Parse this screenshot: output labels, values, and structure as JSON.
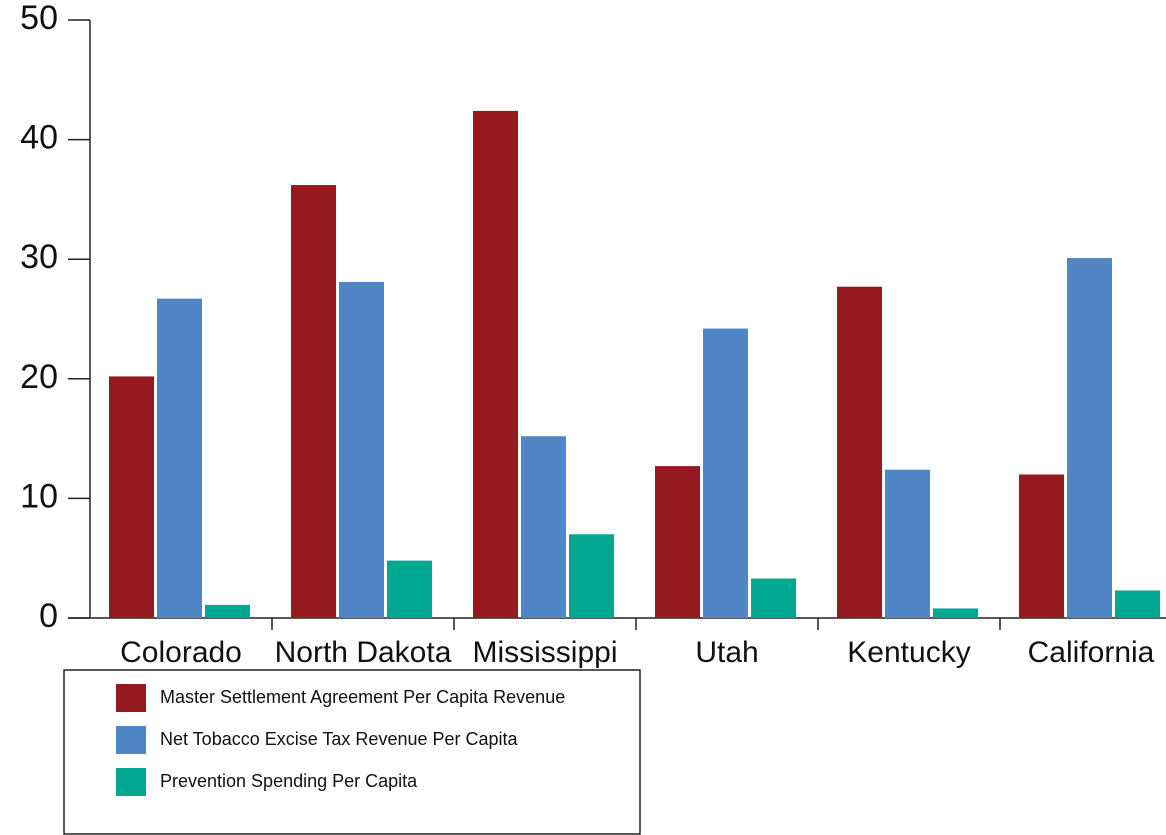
{
  "chart_data": {
    "type": "bar",
    "categories": [
      "Colorado",
      "North Dakota",
      "Mississippi",
      "Utah",
      "Kentucky",
      "California"
    ],
    "series": [
      {
        "name": "Master Settlement Agreement Per Capita Revenue",
        "color": "#941a1f",
        "values": [
          20.2,
          36.2,
          42.4,
          12.7,
          27.7,
          12.0
        ]
      },
      {
        "name": "Net Tobacco Excise Tax Revenue Per Capita",
        "color": "#5186c6",
        "values": [
          26.7,
          28.1,
          15.2,
          24.2,
          12.4,
          30.1
        ]
      },
      {
        "name": "Prevention Spending Per Capita",
        "color": "#00a892",
        "values": [
          1.1,
          4.8,
          7.0,
          3.3,
          0.8,
          2.3
        ]
      }
    ],
    "ylim": [
      0,
      50
    ],
    "yticks": [
      0,
      10,
      20,
      30,
      40,
      50
    ],
    "legend": "bottom-left"
  }
}
